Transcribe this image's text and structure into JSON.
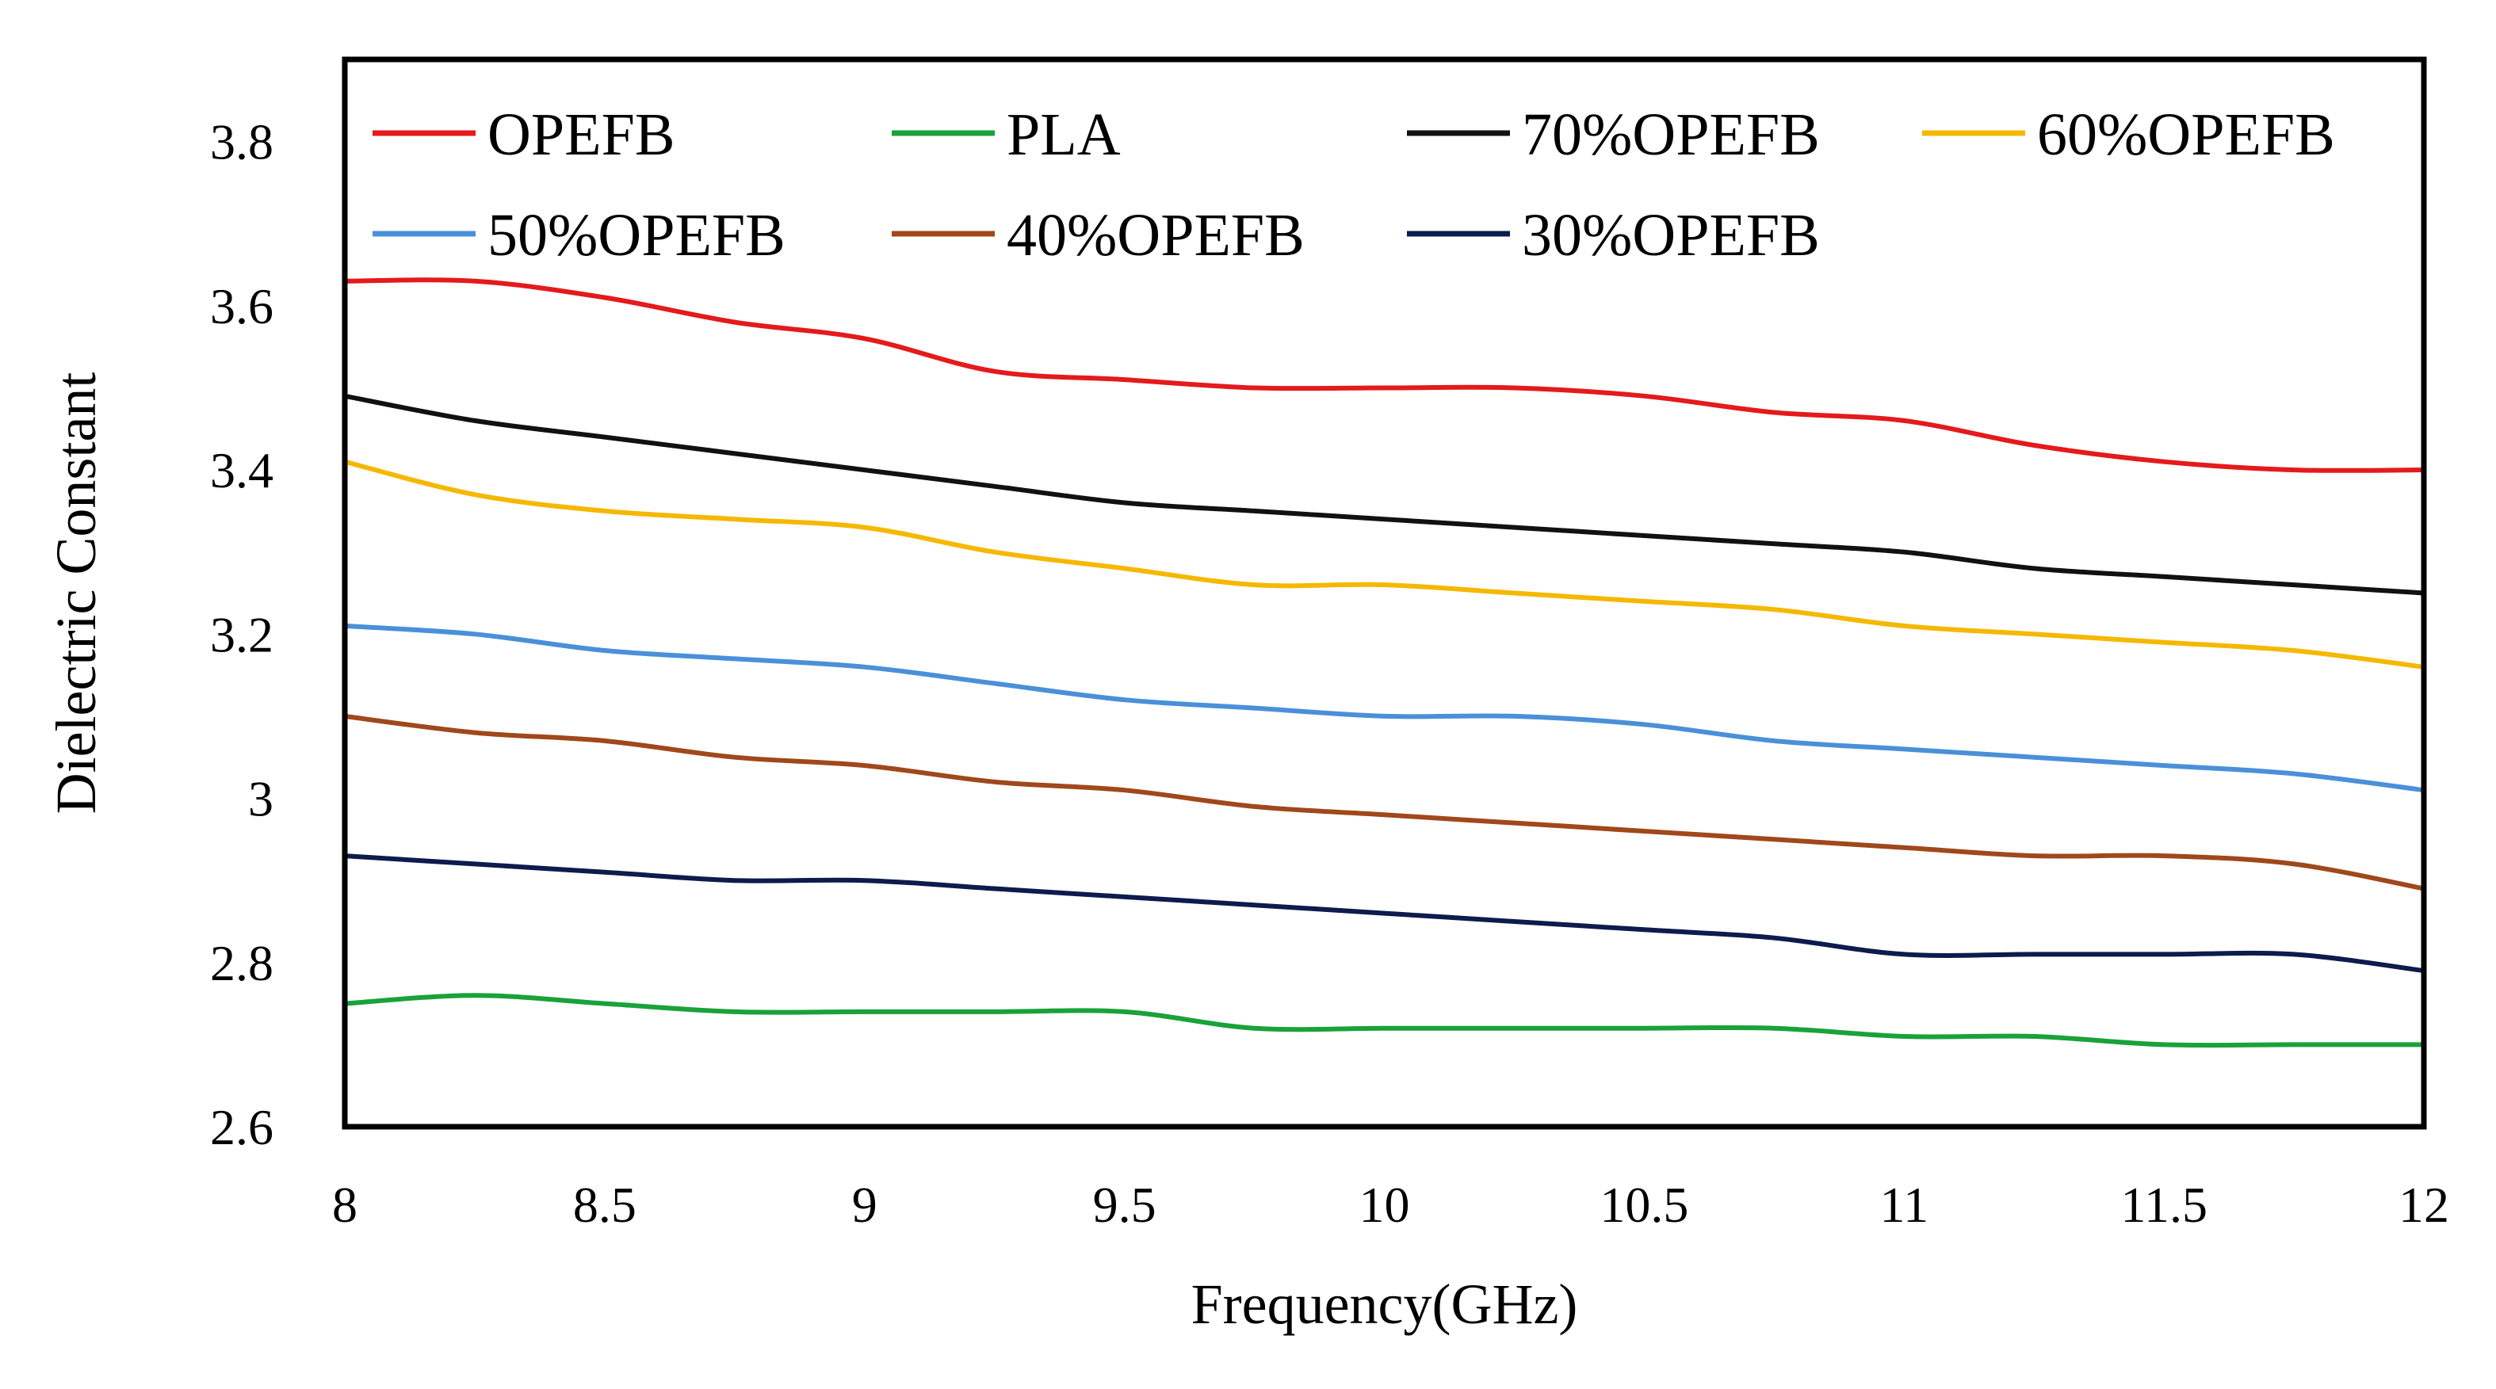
{
  "chart_data": {
    "type": "line",
    "title": "",
    "xlabel": "Frequency(GHz)",
    "ylabel": "Dielectric Constant",
    "xlim": [
      8,
      12
    ],
    "ylim": [
      2.6,
      3.9
    ],
    "x_ticks": [
      {
        "value": 8,
        "label": "8"
      },
      {
        "value": 8.5,
        "label": "8.5"
      },
      {
        "value": 9,
        "label": "9"
      },
      {
        "value": 9.5,
        "label": "9.5"
      },
      {
        "value": 10,
        "label": "10"
      },
      {
        "value": 10.5,
        "label": "10.5"
      },
      {
        "value": 11,
        "label": "11"
      },
      {
        "value": 11.5,
        "label": "11.5"
      },
      {
        "value": 12,
        "label": "12"
      }
    ],
    "y_ticks": [
      {
        "value": 2.6,
        "label": "2.6"
      },
      {
        "value": 2.8,
        "label": "2.8"
      },
      {
        "value": 3.0,
        "label": "3"
      },
      {
        "value": 3.2,
        "label": "3.2"
      },
      {
        "value": 3.4,
        "label": "3.4"
      },
      {
        "value": 3.6,
        "label": "3.6"
      },
      {
        "value": 3.8,
        "label": "3.8"
      }
    ],
    "grid": false,
    "legend_position": "top",
    "x": [
      8.0,
      8.25,
      8.5,
      8.75,
      9.0,
      9.25,
      9.5,
      9.75,
      10.0,
      10.25,
      10.5,
      10.75,
      11.0,
      11.25,
      11.5,
      11.75,
      12.0
    ],
    "series": [
      {
        "name": "OPEFB",
        "color": "#e41a1c",
        "values": [
          3.63,
          3.63,
          3.61,
          3.58,
          3.56,
          3.52,
          3.51,
          3.5,
          3.5,
          3.5,
          3.49,
          3.47,
          3.46,
          3.43,
          3.41,
          3.4,
          3.4
        ]
      },
      {
        "name": "PLA",
        "color": "#1aa23a",
        "values": [
          2.75,
          2.76,
          2.75,
          2.74,
          2.74,
          2.74,
          2.74,
          2.72,
          2.72,
          2.72,
          2.72,
          2.72,
          2.71,
          2.71,
          2.7,
          2.7,
          2.7
        ]
      },
      {
        "name": "70%OPEFB",
        "color": "#111111",
        "values": [
          3.49,
          3.46,
          3.44,
          3.42,
          3.4,
          3.38,
          3.36,
          3.35,
          3.34,
          3.33,
          3.32,
          3.31,
          3.3,
          3.28,
          3.27,
          3.26,
          3.25
        ]
      },
      {
        "name": "60%OPEFB",
        "color": "#f5b800",
        "values": [
          3.41,
          3.37,
          3.35,
          3.34,
          3.33,
          3.3,
          3.28,
          3.26,
          3.26,
          3.25,
          3.24,
          3.23,
          3.21,
          3.2,
          3.19,
          3.18,
          3.16
        ]
      },
      {
        "name": "50%OPEFB",
        "color": "#4a90d9",
        "values": [
          3.21,
          3.2,
          3.18,
          3.17,
          3.16,
          3.14,
          3.12,
          3.11,
          3.1,
          3.1,
          3.09,
          3.07,
          3.06,
          3.05,
          3.04,
          3.03,
          3.01
        ]
      },
      {
        "name": "40%OPEFB",
        "color": "#a0481c",
        "values": [
          3.1,
          3.08,
          3.07,
          3.05,
          3.04,
          3.02,
          3.01,
          2.99,
          2.98,
          2.97,
          2.96,
          2.95,
          2.94,
          2.93,
          2.93,
          2.92,
          2.89
        ]
      },
      {
        "name": "30%OPEFB",
        "color": "#0d1b4d",
        "values": [
          2.93,
          2.92,
          2.91,
          2.9,
          2.9,
          2.89,
          2.88,
          2.87,
          2.86,
          2.85,
          2.84,
          2.83,
          2.81,
          2.81,
          2.81,
          2.81,
          2.79
        ]
      }
    ]
  }
}
